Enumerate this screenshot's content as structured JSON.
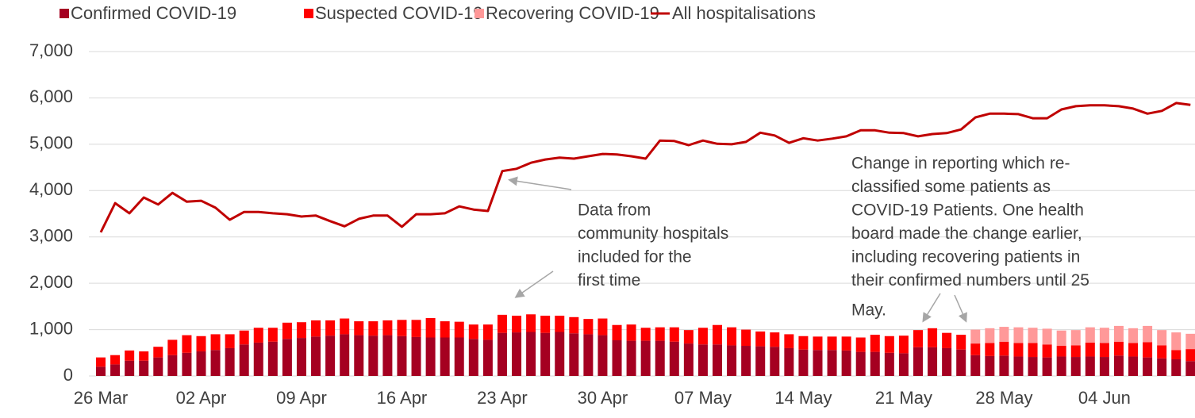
{
  "chart_data": {
    "type": "stacked-bar-line",
    "categories": [
      "26 Mar",
      null,
      null,
      null,
      null,
      null,
      null,
      "02 Apr",
      null,
      null,
      null,
      null,
      null,
      null,
      "09 Apr",
      null,
      null,
      null,
      null,
      null,
      null,
      "16 Apr",
      null,
      null,
      null,
      null,
      null,
      null,
      "23 Apr",
      null,
      null,
      null,
      null,
      null,
      null,
      "30 Apr",
      null,
      null,
      null,
      null,
      null,
      null,
      "07 May",
      null,
      null,
      null,
      null,
      null,
      null,
      "14 May",
      null,
      null,
      null,
      null,
      null,
      null,
      "21 May",
      null,
      null,
      null,
      null,
      null,
      null,
      "28 May",
      null,
      null,
      null,
      null,
      null,
      null,
      "04 Jun",
      null,
      null,
      null,
      null,
      null,
      null
    ],
    "series": [
      {
        "name": "Confirmed COVID-19",
        "color": "#a50021",
        "kind": "bar",
        "values": [
          200,
          250,
          330,
          330,
          400,
          450,
          500,
          530,
          560,
          600,
          680,
          720,
          740,
          800,
          820,
          850,
          870,
          900,
          880,
          870,
          880,
          860,
          840,
          830,
          830,
          830,
          800,
          780,
          930,
          940,
          950,
          930,
          950,
          920,
          900,
          880,
          770,
          760,
          760,
          760,
          740,
          700,
          680,
          680,
          660,
          650,
          640,
          630,
          600,
          570,
          560,
          560,
          550,
          520,
          520,
          500,
          490,
          620,
          620,
          600,
          570,
          450,
          430,
          440,
          420,
          410,
          400,
          420,
          410,
          420,
          410,
          440,
          420,
          400,
          380,
          360,
          320
        ]
      },
      {
        "name": "Suspected COVID-19",
        "color": "#ff0000",
        "kind": "bar",
        "values": [
          200,
          200,
          220,
          200,
          230,
          330,
          380,
          330,
          340,
          300,
          300,
          320,
          300,
          350,
          340,
          350,
          330,
          340,
          300,
          310,
          320,
          350,
          370,
          420,
          350,
          340,
          310,
          330,
          390,
          360,
          380,
          370,
          350,
          350,
          330,
          360,
          330,
          350,
          280,
          290,
          310,
          290,
          360,
          420,
          390,
          350,
          320,
          310,
          300,
          290,
          290,
          290,
          300,
          310,
          370,
          360,
          380,
          370,
          410,
          330,
          320,
          250,
          280,
          300,
          290,
          300,
          280,
          230,
          250,
          300,
          300,
          300,
          290,
          330,
          280,
          200,
          260
        ]
      },
      {
        "name": "Recovering COVID-19",
        "color": "#ff9999",
        "kind": "bar",
        "values": [
          0,
          0,
          0,
          0,
          0,
          0,
          0,
          0,
          0,
          0,
          0,
          0,
          0,
          0,
          0,
          0,
          0,
          0,
          0,
          0,
          0,
          0,
          0,
          0,
          0,
          0,
          0,
          0,
          0,
          0,
          0,
          0,
          0,
          0,
          0,
          0,
          0,
          0,
          0,
          0,
          0,
          0,
          0,
          0,
          0,
          0,
          0,
          0,
          0,
          0,
          0,
          0,
          0,
          0,
          0,
          0,
          0,
          0,
          0,
          0,
          0,
          300,
          320,
          320,
          340,
          330,
          340,
          330,
          330,
          330,
          330,
          340,
          320,
          350,
          330,
          380,
          330
        ]
      },
      {
        "name": "All hospitalisations",
        "color": "#c00000",
        "kind": "line",
        "values": [
          3100,
          3730,
          3510,
          3850,
          3700,
          3950,
          3760,
          3780,
          3630,
          3370,
          3540,
          3540,
          3510,
          3490,
          3440,
          3460,
          3340,
          3230,
          3390,
          3460,
          3460,
          3220,
          3490,
          3490,
          3510,
          3660,
          3590,
          3560,
          4420,
          4470,
          4600,
          4670,
          4710,
          4690,
          4740,
          4790,
          4780,
          4740,
          4690,
          5080,
          5070,
          4980,
          5080,
          5010,
          5000,
          5050,
          5250,
          5190,
          5030,
          5130,
          5080,
          5120,
          5170,
          5300,
          5300,
          5250,
          5240,
          5170,
          5220,
          5240,
          5320,
          5580,
          5660,
          5660,
          5650,
          5560,
          5560,
          5750,
          5820,
          5840,
          5840,
          5820,
          5770,
          5660,
          5720,
          5890,
          5850
        ]
      }
    ],
    "ylim": [
      0,
      7000
    ],
    "yticks": [
      0,
      {
        "value": 1000,
        "label": "1,000"
      },
      {
        "value": 2000,
        "label": "2,000"
      },
      {
        "value": 3000,
        "label": "3,000"
      },
      {
        "value": 4000,
        "label": "4,000"
      },
      {
        "value": 5000,
        "label": "5,000"
      },
      {
        "value": 6000,
        "label": "6,000"
      },
      {
        "value": 7000,
        "label": "7,000"
      }
    ],
    "grid": true,
    "legend": "top",
    "annotations": [
      {
        "lines": [
          "Data from",
          "community hospitals",
          "included for the",
          "first time"
        ]
      },
      {
        "lines": [
          "Change in reporting which re-",
          "classified some patients as",
          "COVID-19 Patients. One health",
          "board made the change earlier,",
          "including recovering patients in",
          "their confirmed numbers until 25",
          "May."
        ]
      }
    ]
  }
}
